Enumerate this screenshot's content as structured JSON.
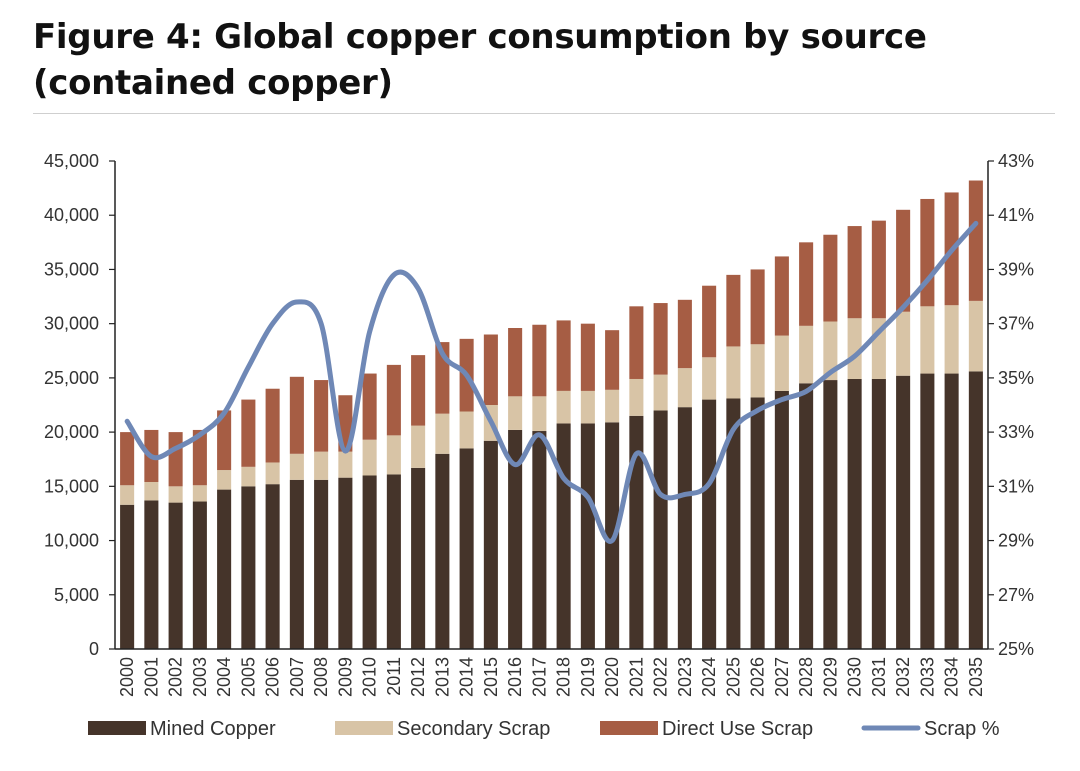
{
  "title": "Figure 4: Global copper consumption by source (contained copper)",
  "chart_data": {
    "type": "bar",
    "stacked": true,
    "title": "Figure 4: Global copper consumption by source (contained copper)",
    "categories": [
      "2000",
      "2001",
      "2002",
      "2003",
      "2004",
      "2005",
      "2006",
      "2007",
      "2008",
      "2009",
      "2010",
      "2011",
      "2012",
      "2013",
      "2014",
      "2015",
      "2016",
      "2017",
      "2018",
      "2019",
      "2020",
      "2021",
      "2022",
      "2023",
      "2024",
      "2025",
      "2026",
      "2027",
      "2028",
      "2029",
      "2030",
      "2031",
      "2032",
      "2033",
      "2034",
      "2035"
    ],
    "series": [
      {
        "name": "Mined Copper",
        "type": "bar",
        "axis": "left",
        "color": "#45342a",
        "values": [
          13300,
          13700,
          13500,
          13600,
          14700,
          15000,
          15200,
          15600,
          15600,
          15800,
          16000,
          16100,
          16700,
          18000,
          18500,
          19200,
          20200,
          20100,
          20800,
          20800,
          20900,
          21500,
          22000,
          22300,
          23000,
          23100,
          23200,
          23800,
          24500,
          24800,
          24900,
          24900,
          25200,
          25400,
          25400,
          25600
        ]
      },
      {
        "name": "Secondary Scrap",
        "type": "bar",
        "axis": "left",
        "color": "#d8c4a6",
        "values": [
          1800,
          1700,
          1500,
          1500,
          1800,
          1800,
          2000,
          2400,
          2600,
          2400,
          3300,
          3600,
          3900,
          3700,
          3400,
          3300,
          3100,
          3200,
          3000,
          3000,
          3000,
          3400,
          3300,
          3600,
          3900,
          4800,
          4900,
          5100,
          5300,
          5400,
          5600,
          5600,
          5900,
          6200,
          6300,
          6500
        ]
      },
      {
        "name": "Direct Use Scrap",
        "type": "bar",
        "axis": "left",
        "color": "#a65d44",
        "values": [
          4900,
          4800,
          5000,
          5100,
          5500,
          6200,
          6800,
          7100,
          6600,
          5200,
          6100,
          6500,
          6500,
          6600,
          6700,
          6500,
          6300,
          6600,
          6500,
          6200,
          5500,
          6700,
          6600,
          6300,
          6600,
          6600,
          6900,
          7300,
          7700,
          8000,
          8500,
          9000,
          9400,
          9900,
          10400,
          11100
        ]
      },
      {
        "name": "Scrap %",
        "type": "line",
        "axis": "right",
        "color": "#6f88b6",
        "values": [
          33.4,
          32.1,
          32.4,
          32.9,
          33.7,
          35.4,
          37.0,
          37.8,
          37.0,
          32.3,
          36.7,
          38.8,
          38.3,
          35.9,
          35.1,
          33.4,
          31.8,
          32.9,
          31.3,
          30.6,
          29.0,
          32.2,
          30.7,
          30.7,
          31.1,
          33.1,
          33.8,
          34.2,
          34.5,
          35.2,
          35.8,
          36.7,
          37.6,
          38.6,
          39.7,
          40.7
        ]
      }
    ],
    "y_left": {
      "min": 0,
      "max": 45000,
      "step": 5000,
      "tick_labels": [
        "0",
        "5,000",
        "10,000",
        "15,000",
        "20,000",
        "25,000",
        "30,000",
        "35,000",
        "40,000",
        "45,000"
      ]
    },
    "y_right": {
      "min": 25,
      "max": 43,
      "step": 2,
      "tick_labels": [
        "25%",
        "27%",
        "29%",
        "31%",
        "33%",
        "35%",
        "37%",
        "39%",
        "41%",
        "43%"
      ]
    },
    "legend": {
      "placement": "bottom",
      "entries": [
        "Mined Copper",
        "Secondary Scrap",
        "Direct Use Scrap",
        "Scrap %"
      ]
    },
    "grid": false,
    "xlabel": "",
    "ylabel": ""
  }
}
